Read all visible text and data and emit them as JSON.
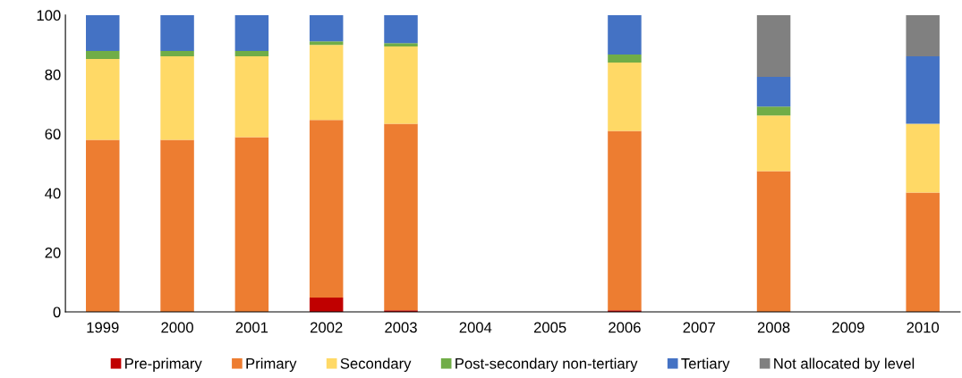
{
  "chart_data": {
    "type": "bar",
    "stacked": true,
    "categories": [
      "1999",
      "2000",
      "2001",
      "2002",
      "2003",
      "2004",
      "2005",
      "2006",
      "2007",
      "2008",
      "2009",
      "2010"
    ],
    "series": [
      {
        "name": "Pre-primary",
        "color": "#c00000",
        "values": [
          0,
          0,
          0,
          4.8,
          0.5,
          null,
          null,
          0.5,
          null,
          0,
          null,
          0
        ]
      },
      {
        "name": "Primary",
        "color": "#ed7d31",
        "values": [
          58,
          58,
          58.9,
          59.9,
          62.9,
          null,
          null,
          60.5,
          null,
          47.4,
          null,
          40.2
        ]
      },
      {
        "name": "Secondary",
        "color": "#ffd966",
        "values": [
          27.2,
          28.1,
          27.2,
          25.3,
          26,
          null,
          null,
          23,
          null,
          18.8,
          null,
          23.2
        ]
      },
      {
        "name": "Post-secondary non-tertiary",
        "color": "#70ad47",
        "values": [
          2.7,
          1.8,
          1.8,
          1.2,
          1.2,
          null,
          null,
          2.7,
          null,
          3,
          null,
          0
        ]
      },
      {
        "name": "Tertiary",
        "color": "#4472c4",
        "values": [
          12.1,
          12.1,
          12.1,
          8.8,
          9.4,
          null,
          null,
          13.3,
          null,
          10,
          null,
          22.7
        ]
      },
      {
        "name": "Not allocated by level",
        "color": "#808080",
        "values": [
          0,
          0,
          0,
          0,
          0,
          null,
          null,
          0,
          null,
          20.8,
          null,
          13.9
        ]
      }
    ],
    "ylim": [
      0,
      100
    ],
    "yticks": [
      0,
      20,
      40,
      60,
      80,
      100
    ],
    "grid": false,
    "legend": "bottom"
  }
}
